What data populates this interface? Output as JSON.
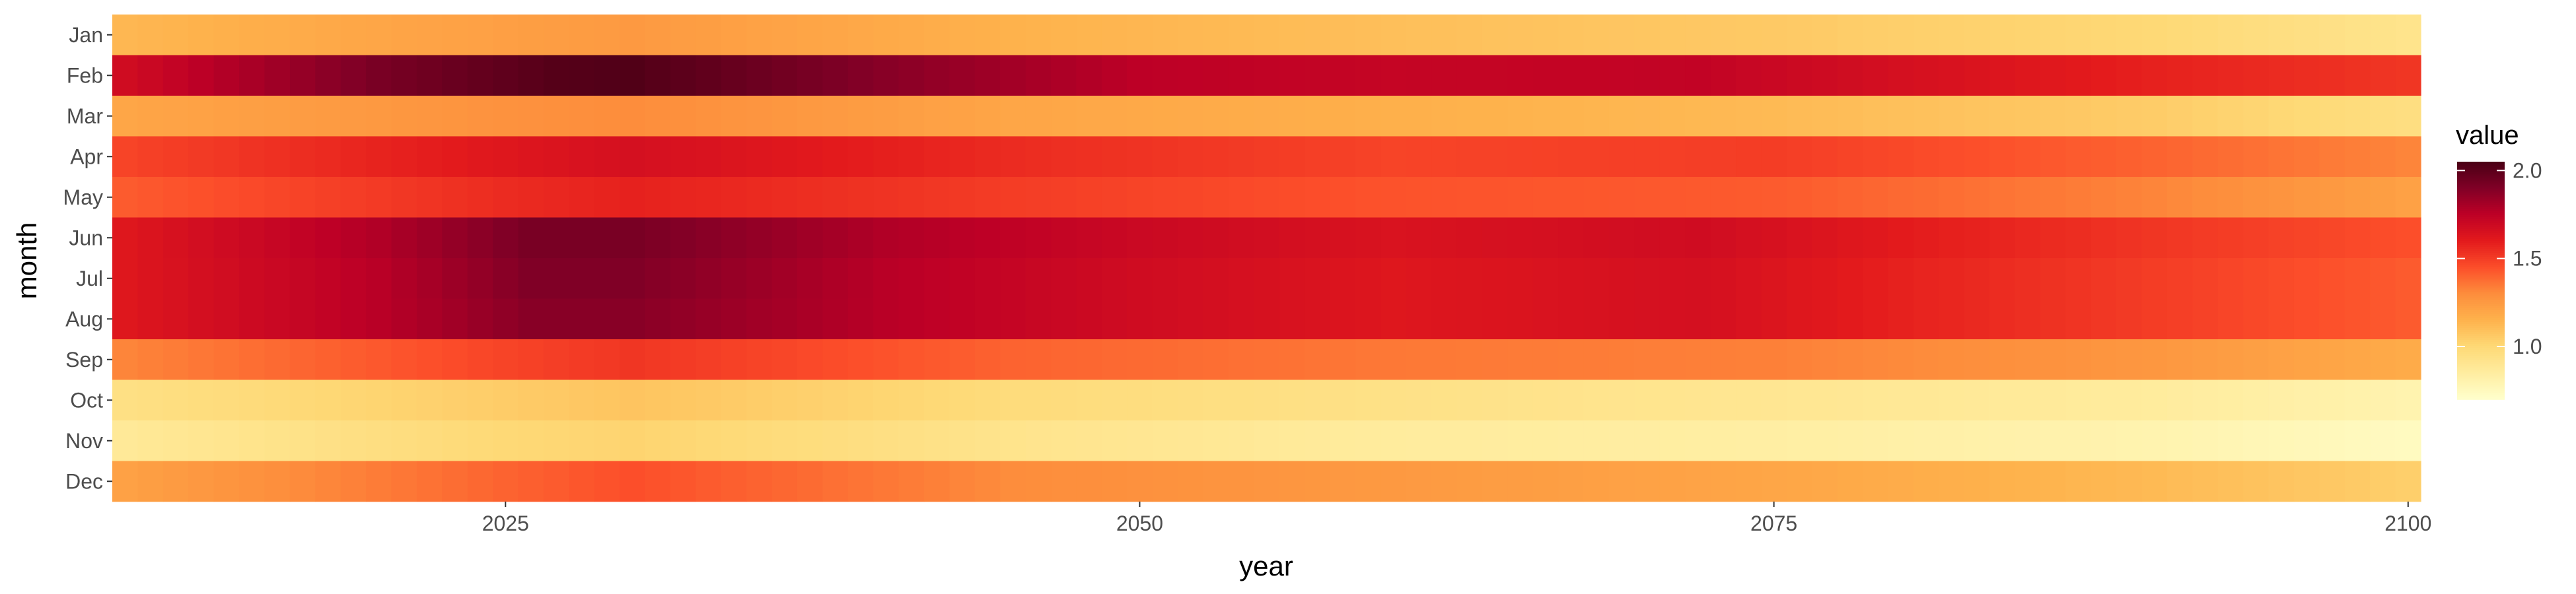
{
  "chart_data": {
    "type": "heatmap",
    "xlabel": "year",
    "ylabel": "month",
    "legend_title": "value",
    "legend_position": "right",
    "x": [
      2010,
      2011,
      2012,
      2013,
      2014,
      2015,
      2016,
      2017,
      2018,
      2019,
      2020,
      2021,
      2022,
      2023,
      2024,
      2025,
      2026,
      2027,
      2028,
      2029,
      2030,
      2031,
      2032,
      2033,
      2034,
      2035,
      2036,
      2037,
      2038,
      2039,
      2040,
      2041,
      2042,
      2043,
      2044,
      2045,
      2046,
      2047,
      2048,
      2049,
      2050,
      2051,
      2052,
      2053,
      2054,
      2055,
      2056,
      2057,
      2058,
      2059,
      2060,
      2061,
      2062,
      2063,
      2064,
      2065,
      2066,
      2067,
      2068,
      2069,
      2070,
      2071,
      2072,
      2073,
      2074,
      2075,
      2076,
      2077,
      2078,
      2079,
      2080,
      2081,
      2082,
      2083,
      2084,
      2085,
      2086,
      2087,
      2088,
      2089,
      2090,
      2091,
      2092,
      2093,
      2094,
      2095,
      2096,
      2097,
      2098,
      2099,
      2100
    ],
    "xlim": [
      2009.5,
      2100.5
    ],
    "x_ticks": [
      2025,
      2050,
      2075,
      2100
    ],
    "months": [
      "Jan",
      "Feb",
      "Mar",
      "Apr",
      "May",
      "Jun",
      "Jul",
      "Aug",
      "Sep",
      "Oct",
      "Nov",
      "Dec"
    ],
    "color_scale": {
      "low": 0.7,
      "high": 2.05,
      "ticks": [
        1.0,
        1.5,
        2.0
      ],
      "tick_labels": [
        "1.0",
        "1.5",
        "2.0"
      ],
      "colors": [
        "#ffffcc",
        "#ffeda0",
        "#fed976",
        "#feb24c",
        "#fd8d3c",
        "#fc4e2a",
        "#e31a1c",
        "#bd0026",
        "#800026",
        "#4a0015"
      ]
    },
    "row_profiles": [
      {
        "month": "Jan",
        "points": [
          [
            2010,
            1.13
          ],
          [
            2020,
            1.2
          ],
          [
            2030,
            1.25
          ],
          [
            2045,
            1.15
          ],
          [
            2060,
            1.1
          ],
          [
            2075,
            1.06
          ],
          [
            2090,
            1.0
          ],
          [
            2100,
            0.92
          ]
        ]
      },
      {
        "month": "Feb",
        "points": [
          [
            2010,
            1.68
          ],
          [
            2020,
            1.92
          ],
          [
            2027,
            2.02
          ],
          [
            2030,
            2.03
          ],
          [
            2040,
            1.88
          ],
          [
            2050,
            1.75
          ],
          [
            2060,
            1.72
          ],
          [
            2072,
            1.73
          ],
          [
            2080,
            1.66
          ],
          [
            2090,
            1.58
          ],
          [
            2100,
            1.52
          ]
        ]
      },
      {
        "month": "Mar",
        "points": [
          [
            2010,
            1.2
          ],
          [
            2025,
            1.28
          ],
          [
            2030,
            1.3
          ],
          [
            2045,
            1.2
          ],
          [
            2060,
            1.16
          ],
          [
            2075,
            1.12
          ],
          [
            2090,
            1.05
          ],
          [
            2100,
            0.96
          ]
        ]
      },
      {
        "month": "Apr",
        "points": [
          [
            2010,
            1.48
          ],
          [
            2025,
            1.62
          ],
          [
            2030,
            1.66
          ],
          [
            2045,
            1.55
          ],
          [
            2060,
            1.48
          ],
          [
            2075,
            1.5
          ],
          [
            2090,
            1.4
          ],
          [
            2100,
            1.32
          ]
        ]
      },
      {
        "month": "May",
        "points": [
          [
            2010,
            1.42
          ],
          [
            2025,
            1.55
          ],
          [
            2030,
            1.58
          ],
          [
            2045,
            1.5
          ],
          [
            2060,
            1.44
          ],
          [
            2075,
            1.42
          ],
          [
            2090,
            1.32
          ],
          [
            2100,
            1.22
          ]
        ]
      },
      {
        "month": "Jun",
        "points": [
          [
            2010,
            1.62
          ],
          [
            2020,
            1.78
          ],
          [
            2026,
            1.92
          ],
          [
            2030,
            1.92
          ],
          [
            2040,
            1.78
          ],
          [
            2050,
            1.7
          ],
          [
            2060,
            1.64
          ],
          [
            2072,
            1.68
          ],
          [
            2080,
            1.6
          ],
          [
            2090,
            1.52
          ],
          [
            2100,
            1.45
          ]
        ]
      },
      {
        "month": "Jul",
        "points": [
          [
            2010,
            1.62
          ],
          [
            2020,
            1.76
          ],
          [
            2026,
            1.9
          ],
          [
            2030,
            1.9
          ],
          [
            2040,
            1.76
          ],
          [
            2050,
            1.68
          ],
          [
            2060,
            1.62
          ],
          [
            2072,
            1.66
          ],
          [
            2080,
            1.58
          ],
          [
            2090,
            1.5
          ],
          [
            2100,
            1.42
          ]
        ]
      },
      {
        "month": "Aug",
        "points": [
          [
            2010,
            1.62
          ],
          [
            2020,
            1.76
          ],
          [
            2026,
            1.88
          ],
          [
            2030,
            1.88
          ],
          [
            2040,
            1.76
          ],
          [
            2050,
            1.68
          ],
          [
            2060,
            1.62
          ],
          [
            2072,
            1.66
          ],
          [
            2080,
            1.58
          ],
          [
            2090,
            1.5
          ],
          [
            2100,
            1.42
          ]
        ]
      },
      {
        "month": "Sep",
        "points": [
          [
            2010,
            1.32
          ],
          [
            2025,
            1.48
          ],
          [
            2030,
            1.52
          ],
          [
            2045,
            1.4
          ],
          [
            2060,
            1.35
          ],
          [
            2075,
            1.33
          ],
          [
            2090,
            1.26
          ],
          [
            2100,
            1.18
          ]
        ]
      },
      {
        "month": "Oct",
        "points": [
          [
            2010,
            0.95
          ],
          [
            2025,
            1.05
          ],
          [
            2030,
            1.08
          ],
          [
            2045,
            0.98
          ],
          [
            2060,
            0.94
          ],
          [
            2075,
            0.9
          ],
          [
            2090,
            0.86
          ],
          [
            2100,
            0.8
          ]
        ]
      },
      {
        "month": "Nov",
        "points": [
          [
            2010,
            0.88
          ],
          [
            2025,
            1.0
          ],
          [
            2030,
            1.02
          ],
          [
            2045,
            0.92
          ],
          [
            2060,
            0.86
          ],
          [
            2075,
            0.84
          ],
          [
            2090,
            0.8
          ],
          [
            2100,
            0.74
          ]
        ]
      },
      {
        "month": "Dec",
        "points": [
          [
            2010,
            1.22
          ],
          [
            2025,
            1.4
          ],
          [
            2030,
            1.45
          ],
          [
            2045,
            1.3
          ],
          [
            2060,
            1.25
          ],
          [
            2075,
            1.2
          ],
          [
            2090,
            1.12
          ],
          [
            2100,
            1.04
          ]
        ]
      }
    ]
  }
}
